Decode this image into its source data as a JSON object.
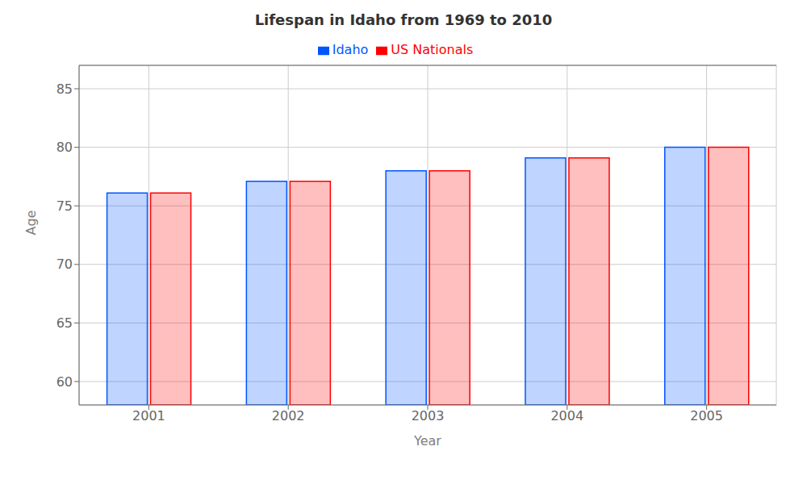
{
  "chart_data": {
    "type": "bar",
    "title": "Lifespan in Idaho from 1969 to 2010",
    "x_label": "Year",
    "y_label": "Age",
    "categories": [
      "2001",
      "2002",
      "2003",
      "2004",
      "2005"
    ],
    "series": [
      {
        "name": "Idaho",
        "color": "#0055ff",
        "values": [
          76.1,
          77.1,
          78.0,
          79.1,
          80.0
        ]
      },
      {
        "name": "US Nationals",
        "color": "#ff0000",
        "values": [
          76.1,
          77.1,
          78.0,
          79.1,
          80.0
        ]
      }
    ],
    "ylim": [
      58.0,
      87.0
    ],
    "yticks": [
      60,
      65,
      70,
      75,
      80,
      85
    ],
    "grid": true,
    "legend": "top"
  }
}
